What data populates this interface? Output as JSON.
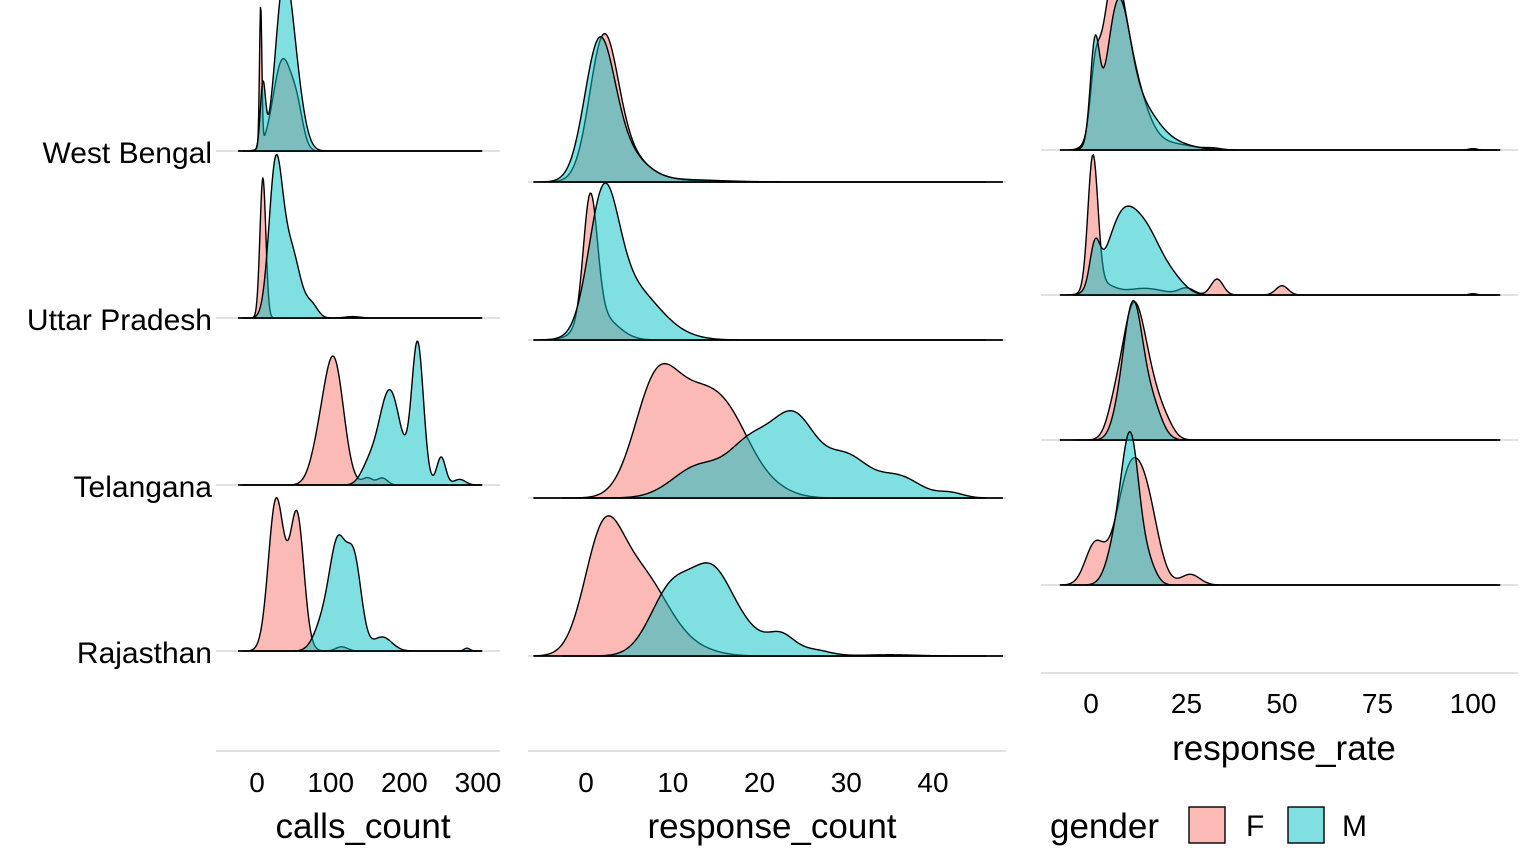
{
  "chart_data": [
    {
      "type": "ridgeline",
      "xlabel": "calls_count",
      "xlim": [
        -25,
        305
      ],
      "xticks": [
        0,
        100,
        200,
        300
      ],
      "categories": [
        "West Bengal",
        "Uttar Pradesh",
        "Telangana",
        "Rajasthan"
      ],
      "series": [
        {
          "name": "F",
          "color": "#F8766D",
          "rows": [
            [
              [
                5,
                1.0,
                1.6
              ],
              [
                35,
                0.65,
                13
              ],
              [
                55,
                0.2,
                8
              ]
            ],
            [
              [
                8,
                1.0,
                4
              ]
            ],
            [
              [
                105,
                0.85,
                13
              ],
              [
                85,
                0.25,
                12
              ],
              [
                150,
                0.05,
                7
              ],
              [
                170,
                0.05,
                7
              ]
            ],
            [
              [
                25,
                0.9,
                10
              ],
              [
                55,
                0.8,
                9
              ],
              [
                40,
                0.3,
                15
              ],
              [
                115,
                0.03,
                8
              ]
            ]
          ]
        },
        {
          "name": "M",
          "color": "#00BFC4",
          "rows": [
            [
              [
                35,
                1.0,
                11
              ],
              [
                50,
                0.5,
                12
              ],
              [
                8,
                0.45,
                3.5
              ]
            ],
            [
              [
                25,
                1.0,
                9
              ],
              [
                45,
                0.5,
                13
              ],
              [
                75,
                0.08,
                8
              ],
              [
                130,
                0.01,
                10
              ]
            ],
            [
              [
                218,
                1.0,
                8
              ],
              [
                180,
                0.68,
                15
              ],
              [
                250,
                0.2,
                6
              ],
              [
                150,
                0.1,
                10
              ],
              [
                275,
                0.04,
                8
              ]
            ],
            [
              [
                110,
                0.72,
                11
              ],
              [
                132,
                0.62,
                10
              ],
              [
                90,
                0.2,
                12
              ],
              [
                170,
                0.1,
                13
              ],
              [
                285,
                0.02,
                4
              ]
            ]
          ]
        }
      ]
    },
    {
      "type": "ridgeline",
      "xlabel": "response_count",
      "xlim": [
        -6,
        48
      ],
      "xticks": [
        0,
        10,
        20,
        30,
        40
      ],
      "series": [
        {
          "name": "F",
          "color": "#F8766D",
          "rows": [
            [
              [
                2,
                1.0,
                1.6
              ],
              [
                4,
                0.25,
                2.5
              ],
              [
                9,
                0.02,
                3
              ]
            ],
            [
              [
                0.5,
                1.0,
                0.8
              ],
              [
                1.5,
                0.2,
                2
              ]
            ],
            [
              [
                8,
                0.85,
                2.5
              ],
              [
                13,
                0.7,
                3
              ],
              [
                17,
                0.38,
                2.5
              ],
              [
                21,
                0.08,
                2.5
              ]
            ],
            [
              [
                2,
                0.95,
                2.2
              ],
              [
                6,
                0.5,
                2.5
              ],
              [
                9,
                0.2,
                2.5
              ],
              [
                13,
                0.04,
                2.5
              ]
            ]
          ]
        },
        {
          "name": "M",
          "color": "#00BFC4",
          "rows": [
            [
              [
                1.5,
                1.0,
                1.7
              ],
              [
                4,
                0.25,
                2.5
              ],
              [
                10,
                0.02,
                5
              ]
            ],
            [
              [
                2,
                1.0,
                1.7
              ],
              [
                5,
                0.4,
                3
              ],
              [
                9,
                0.05,
                3
              ]
            ],
            [
              [
                13,
                0.25,
                3
              ],
              [
                19,
                0.4,
                2.5
              ],
              [
                24,
                0.62,
                2.5
              ],
              [
                30,
                0.32,
                2.5
              ],
              [
                36,
                0.17,
                2.5
              ],
              [
                42,
                0.04,
                1.5
              ]
            ],
            [
              [
                10,
                0.55,
                2.5
              ],
              [
                14.5,
                0.55,
                2.2
              ],
              [
                18,
                0.2,
                2.5
              ],
              [
                22.5,
                0.14,
                1.5
              ],
              [
                26,
                0.05,
                2
              ],
              [
                35,
                0.01,
                3
              ]
            ]
          ]
        }
      ]
    },
    {
      "type": "ridgeline",
      "xlabel": "response_rate",
      "xlim": [
        -8,
        107
      ],
      "xticks": [
        0,
        25,
        50,
        75,
        100
      ],
      "series": [
        {
          "name": "F",
          "color": "#F8766D",
          "rows": [
            [
              [
                5.5,
                1.0,
                3
              ],
              [
                10,
                0.55,
                4
              ],
              [
                1,
                0.35,
                1.2
              ],
              [
                20,
                0.05,
                6
              ],
              [
                32,
                0.01,
                2
              ],
              [
                100,
                0.01,
                1
              ]
            ],
            [
              [
                0.5,
                1.0,
                1.3
              ],
              [
                3,
                0.08,
                3
              ],
              [
                14,
                0.05,
                5
              ],
              [
                25,
                0.05,
                2
              ],
              [
                33,
                0.12,
                1.6
              ],
              [
                50,
                0.07,
                1.6
              ],
              [
                100,
                0.01,
                1
              ]
            ],
            [
              [
                11,
                0.95,
                3
              ],
              [
                16,
                0.3,
                3
              ],
              [
                6,
                0.15,
                2
              ],
              [
                20,
                0.05,
                2
              ]
            ],
            [
              [
                10,
                0.8,
                3.5
              ],
              [
                15,
                0.45,
                3
              ],
              [
                1,
                0.3,
                2.5
              ],
              [
                26,
                0.08,
                2.5
              ]
            ]
          ]
        },
        {
          "name": "M",
          "color": "#00BFC4",
          "rows": [
            [
              [
                7,
                0.92,
                3
              ],
              [
                1,
                0.7,
                1.2
              ],
              [
                12,
                0.35,
                5
              ],
              [
                22,
                0.04,
                5
              ],
              [
                100,
                0.01,
                1
              ]
            ],
            [
              [
                8,
                0.55,
                4
              ],
              [
                15,
                0.4,
                4
              ],
              [
                1,
                0.3,
                1.3
              ],
              [
                22,
                0.08,
                3
              ]
            ],
            [
              [
                11,
                1.0,
                2.5
              ],
              [
                16,
                0.25,
                2.5
              ],
              [
                7,
                0.1,
                2
              ]
            ],
            [
              [
                10.5,
                1.0,
                2.2
              ],
              [
                7,
                0.35,
                2.5
              ],
              [
                15,
                0.15,
                2
              ]
            ]
          ]
        }
      ]
    }
  ],
  "legend": {
    "title": "gender",
    "items": [
      {
        "label": "F",
        "color": "#F8766D"
      },
      {
        "label": "M",
        "color": "#00BFC4"
      }
    ]
  }
}
